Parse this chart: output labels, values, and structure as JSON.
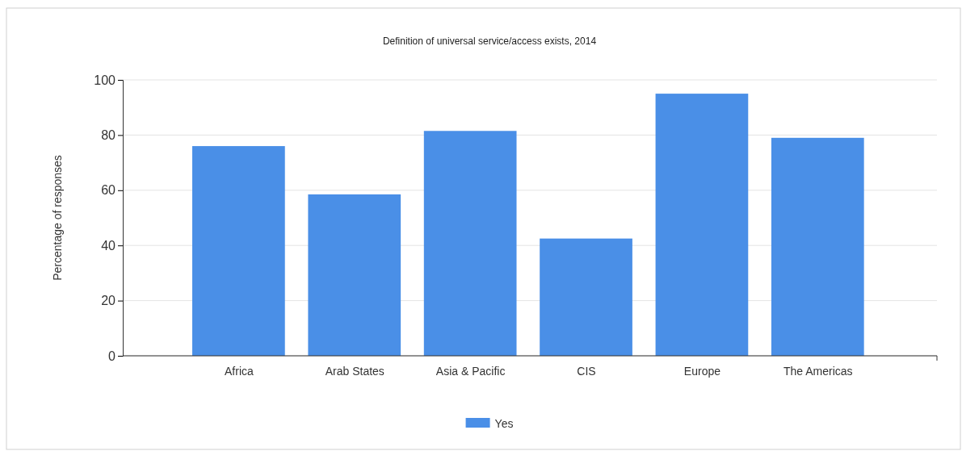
{
  "chart_data": {
    "type": "bar",
    "title": "Definition of universal service/access exists, 2014",
    "ylabel": "Percentage of responses",
    "categories": [
      "Africa",
      "Arab States",
      "Asia & Pacific",
      "CIS",
      "Europe",
      "The Americas"
    ],
    "series": [
      {
        "name": "Yes",
        "color": "#4a8fe7",
        "values": [
          76,
          58.5,
          81.5,
          42.5,
          95,
          79
        ]
      }
    ],
    "ylim": [
      0,
      100
    ],
    "yticks": [
      0,
      20,
      40,
      60,
      80,
      100
    ],
    "grid": "y",
    "legend": "bottom"
  }
}
